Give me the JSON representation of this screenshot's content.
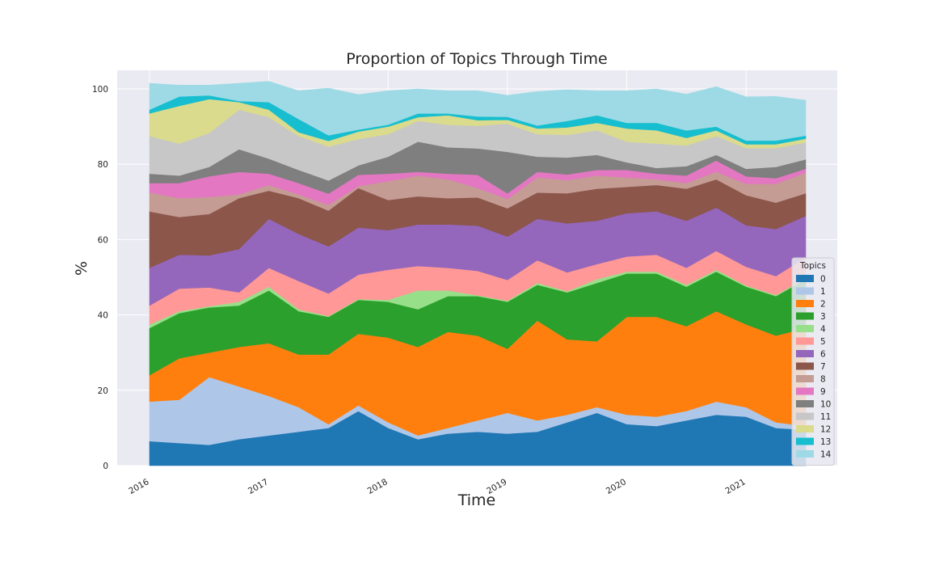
{
  "chart_data": {
    "type": "area",
    "stacked": true,
    "title": "Proportion of Topics Through Time",
    "xlabel": "Time",
    "ylabel": "%",
    "ylim": [
      0,
      105
    ],
    "yticks": [
      0,
      20,
      40,
      60,
      80,
      100
    ],
    "xtick_labels": [
      "2016",
      "2017",
      "2018",
      "2019",
      "2020",
      "2021"
    ],
    "grid": true,
    "legend": {
      "title": "Topics",
      "placement": "right"
    },
    "x": [
      "2016-01",
      "2016-04",
      "2016-07",
      "2016-10",
      "2017-01",
      "2017-04",
      "2017-07",
      "2017-10",
      "2018-01",
      "2018-04",
      "2018-07",
      "2018-10",
      "2019-01",
      "2019-04",
      "2019-07",
      "2019-10",
      "2020-01",
      "2020-04",
      "2020-07",
      "2020-10",
      "2021-01",
      "2021-04",
      "2021-07"
    ],
    "series": [
      {
        "name": "0",
        "color": "#1f77b4",
        "values": [
          6.5,
          6,
          5.5,
          7,
          8,
          9,
          10,
          14.5,
          10,
          7,
          8.5,
          9,
          8.5,
          9,
          11.5,
          14,
          11,
          10.5,
          12,
          13.5,
          13,
          10,
          9.5
        ]
      },
      {
        "name": "1",
        "color": "#aec7e8",
        "values": [
          10.5,
          11.5,
          18,
          14,
          10.5,
          6.5,
          1,
          1.5,
          1.5,
          1,
          1.5,
          3,
          5.5,
          3,
          2,
          1.5,
          2.5,
          2.5,
          2.5,
          3.5,
          2.5,
          1.5,
          1
        ]
      },
      {
        "name": "2",
        "color": "#ff7f0e",
        "values": [
          7,
          11,
          6.5,
          10.5,
          14,
          14,
          18.5,
          19,
          22.5,
          23.5,
          25.5,
          22.5,
          17,
          26.5,
          20,
          17.5,
          26,
          26.5,
          22.5,
          24,
          22,
          23,
          26
        ]
      },
      {
        "name": "3",
        "color": "#2ca02c",
        "values": [
          12.5,
          12,
          12,
          11,
          14,
          11.5,
          10,
          9,
          9.5,
          10,
          9.5,
          10.5,
          12.5,
          9.5,
          12.5,
          15.5,
          11.5,
          11.5,
          10.5,
          10.5,
          10,
          10.5,
          13
        ]
      },
      {
        "name": "4",
        "color": "#98df8a",
        "values": [
          1,
          0.5,
          0.3,
          1,
          1,
          0.5,
          0.2,
          0.2,
          0.5,
          5,
          1.5,
          0.2,
          0.3,
          0.5,
          0.3,
          1,
          0.5,
          0.5,
          0.5,
          0.5,
          0.3,
          0.3,
          0.3
        ]
      },
      {
        "name": "5",
        "color": "#ff9896",
        "values": [
          5,
          6,
          5,
          2.5,
          5,
          7.5,
          6,
          6.5,
          8,
          6.5,
          6,
          6.5,
          5.5,
          6,
          5,
          4,
          4,
          4.5,
          4.5,
          5,
          5,
          5,
          5.5
        ]
      },
      {
        "name": "6",
        "color": "#9467bd",
        "values": [
          10,
          9,
          8.5,
          11.5,
          13,
          12.5,
          12.5,
          12.5,
          10.5,
          11,
          11.5,
          12,
          11.5,
          11,
          13,
          11.5,
          11.5,
          11.5,
          12.5,
          11.5,
          11,
          12.5,
          11
        ]
      },
      {
        "name": "7",
        "color": "#8c564b",
        "values": [
          15,
          10,
          11,
          13.5,
          7.5,
          9.5,
          9.5,
          10.5,
          8,
          7.5,
          7,
          7.5,
          7.5,
          7,
          8,
          8.5,
          7,
          7,
          8.5,
          7.5,
          8,
          7,
          6
        ]
      },
      {
        "name": "8",
        "color": "#c49c94",
        "values": [
          5,
          5,
          4.5,
          1,
          1.5,
          1,
          1.5,
          0.5,
          5,
          5.5,
          5,
          2.5,
          2.5,
          4,
          3.5,
          3.5,
          2.5,
          1.5,
          1.5,
          2,
          3,
          5,
          5.5
        ]
      },
      {
        "name": "9",
        "color": "#e377c2",
        "values": [
          2.5,
          4,
          5.5,
          6,
          3,
          3,
          3,
          3,
          2,
          1,
          1.5,
          3.5,
          1.5,
          1.5,
          1.5,
          1.5,
          2,
          1.5,
          2,
          3,
          2,
          1.5,
          1
        ]
      },
      {
        "name": "10",
        "color": "#7f7f7f",
        "values": [
          2.5,
          2,
          2.5,
          6,
          4,
          3.5,
          3.5,
          2.5,
          4.5,
          8,
          7,
          7,
          11,
          4,
          4.5,
          4,
          2,
          1.5,
          2.5,
          1.5,
          2,
          3,
          2.5
        ]
      },
      {
        "name": "11",
        "color": "#c7c7c7",
        "values": [
          10,
          8.5,
          9,
          10.5,
          11,
          9,
          9,
          7,
          6,
          5.5,
          6,
          6,
          7.5,
          6,
          6,
          6.5,
          5.5,
          6.5,
          5.5,
          5,
          5.5,
          5,
          4.5
        ]
      },
      {
        "name": "12",
        "color": "#dbdb8d",
        "values": [
          6,
          10,
          9,
          2,
          2,
          1,
          1.5,
          2,
          2,
          1,
          2.5,
          1.5,
          1,
          1.5,
          2,
          2,
          3.5,
          3.5,
          2,
          1.5,
          1,
          1,
          1
        ]
      },
      {
        "name": "13",
        "color": "#17becf",
        "values": [
          1,
          2.5,
          1,
          0.3,
          2,
          3.5,
          1.5,
          0.5,
          0.5,
          1,
          0.5,
          1,
          0.8,
          0.8,
          1.7,
          2,
          1.5,
          2,
          2,
          1,
          1,
          1,
          0.8
        ]
      },
      {
        "name": "14",
        "color": "#9edae5",
        "values": [
          7,
          3,
          2.7,
          4.7,
          5.5,
          7.5,
          12.5,
          9.3,
          9,
          6.5,
          6,
          6.8,
          5.7,
          9,
          8.3,
          6.5,
          8.5,
          9,
          9.6,
          10.6,
          11.6,
          11.7,
          9.4
        ]
      }
    ]
  }
}
